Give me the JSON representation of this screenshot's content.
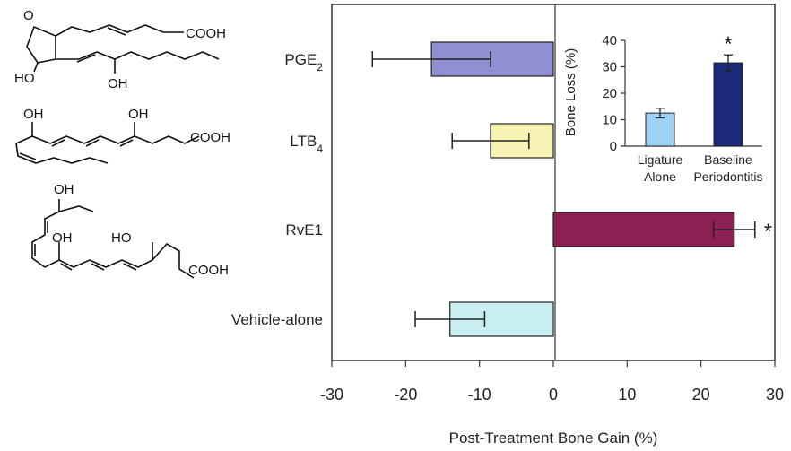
{
  "chart_data": [
    {
      "type": "bar",
      "orientation": "horizontal",
      "categories": [
        "PGE2",
        "LTB4",
        "RvE1",
        "Vehicle-alone"
      ],
      "category_labels": [
        {
          "main": "PGE",
          "sub": "2"
        },
        {
          "main": "LTB",
          "sub": "4"
        },
        {
          "main": "RvE1",
          "sub": ""
        },
        {
          "main": "Vehicle-alone",
          "sub": ""
        }
      ],
      "values": [
        -16.5,
        -8.5,
        24.5,
        -14.0
      ],
      "errors": [
        8.0,
        5.2,
        2.8,
        4.7
      ],
      "significant": [
        false,
        false,
        true,
        false
      ],
      "colors": [
        "#8f8fd2",
        "#f6f3b3",
        "#8e1f52",
        "#c8eef2"
      ],
      "xlabel": "Post-Treatment Bone Gain (%)",
      "xlim": [
        -30,
        30
      ],
      "xticks": [
        -30,
        -20,
        -10,
        0,
        10,
        20,
        30
      ],
      "significance_marker": "*"
    },
    {
      "type": "bar",
      "categories": [
        "Ligature Alone",
        "Baseline Periodontitis"
      ],
      "category_lines": [
        [
          "Ligature",
          "Alone"
        ],
        [
          "Baseline",
          "Periodontitis"
        ]
      ],
      "values": [
        12.5,
        31.5
      ],
      "errors": [
        1.8,
        3.0
      ],
      "significant": [
        false,
        true
      ],
      "colors": [
        "#9fd0f5",
        "#1c2a7a"
      ],
      "ylabel": "Bone Loss (%)",
      "ylim": [
        0,
        40
      ],
      "yticks": [
        0,
        10,
        20,
        30,
        40
      ],
      "significance_marker": "*"
    }
  ],
  "structures": [
    {
      "name": "PGE2",
      "labels": [
        "O",
        "COOH",
        "HO",
        "OH"
      ]
    },
    {
      "name": "LTB4",
      "labels": [
        "OH",
        "OH",
        "COOH"
      ]
    },
    {
      "name": "RvE1",
      "labels": [
        "OH",
        "OH",
        "HO",
        "COOH"
      ]
    }
  ]
}
